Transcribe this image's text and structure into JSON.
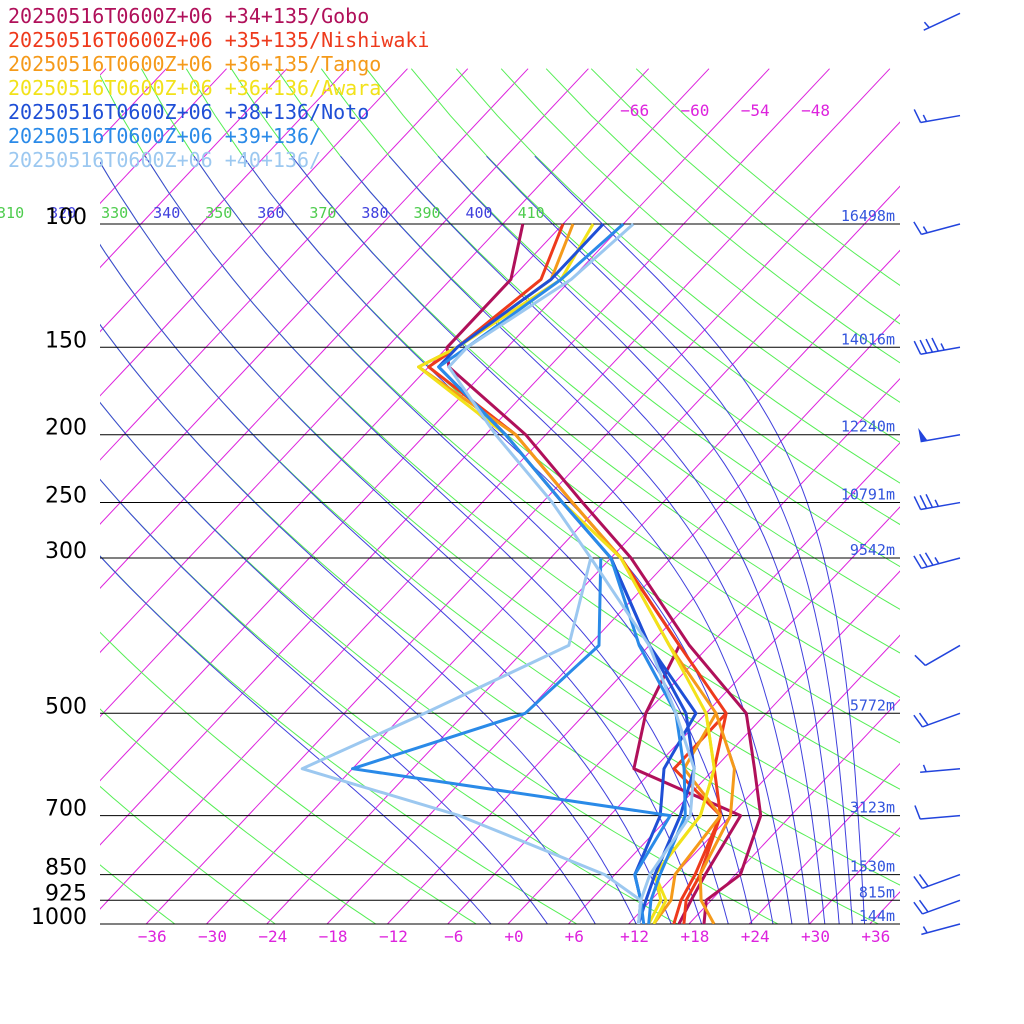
{
  "legend": [
    {
      "label": "20250516T0600Z+06 +34+135/Gobo",
      "color": "#b0105a"
    },
    {
      "label": "20250516T0600Z+06 +35+135/Nishiwaki",
      "color": "#ee3a1c"
    },
    {
      "label": "20250516T0600Z+06 +36+135/Tango",
      "color": "#f59a1a"
    },
    {
      "label": "20250516T0600Z+06 +36+136/Awara",
      "color": "#f2e21a"
    },
    {
      "label": "20250516T0600Z+06 +38+136/Noto",
      "color": "#1f4fd6"
    },
    {
      "label": "20250516T0600Z+06 +39+136/",
      "color": "#2a8ae8"
    },
    {
      "label": "20250516T0600Z+06 +40+136/",
      "color": "#9cc8f0"
    }
  ],
  "colors": {
    "isotherm": "#dd22dd",
    "theta": "#55ee55",
    "theta_e": "#4040dd",
    "height_label": "#3355dd",
    "wind_barb": "#2244dd",
    "isobar": "#000000"
  },
  "chart_data": {
    "type": "skew-t",
    "y_axis": "pressure (hPa), log scale",
    "x_axis": "temperature (°C), skewed",
    "pressure_levels": [
      {
        "p": 100,
        "label": "100",
        "height": "16498m"
      },
      {
        "p": 150,
        "label": "150",
        "height": "14016m"
      },
      {
        "p": 200,
        "label": "200",
        "height": "12240m"
      },
      {
        "p": 250,
        "label": "250",
        "height": "10791m"
      },
      {
        "p": 300,
        "label": "300",
        "height": "9542m"
      },
      {
        "p": 500,
        "label": "500",
        "height": "5772m"
      },
      {
        "p": 700,
        "label": "700",
        "height": "3123m"
      },
      {
        "p": 850,
        "label": "850",
        "height": "1530m"
      },
      {
        "p": 925,
        "label": "925",
        "height": "815m"
      },
      {
        "p": 1000,
        "label": "1000",
        "height": "144m"
      }
    ],
    "temperature_ticks": [
      -36,
      -30,
      -24,
      -18,
      -12,
      -6,
      0,
      6,
      12,
      18,
      24,
      30,
      36
    ],
    "temperature_tick_labels": [
      "−36",
      "−30",
      "−24",
      "−18",
      "−12",
      "−6",
      "+0",
      "+6",
      "+12",
      "+18",
      "+24",
      "+30",
      "+36"
    ],
    "upper_isotherm_labels": [
      "−66",
      "−60",
      "−54",
      "−48"
    ],
    "theta_labels": [
      "310",
      "320",
      "330",
      "340",
      "350",
      "360",
      "370",
      "380",
      "390",
      "400",
      "410"
    ],
    "series": [
      {
        "name": "20250516T0600Z+06 +34+135/Gobo",
        "temp": [
          [
            1000,
            19.5
          ],
          [
            925,
            17.5
          ],
          [
            850,
            18.5
          ],
          [
            700,
            15
          ],
          [
            600,
            10
          ],
          [
            500,
            4
          ],
          [
            400,
            -8
          ],
          [
            300,
            -22
          ],
          [
            250,
            -32
          ],
          [
            200,
            -44
          ],
          [
            160,
            -58
          ],
          [
            150,
            -60
          ],
          [
            120,
            -60
          ],
          [
            100,
            -64
          ]
        ],
        "dew": [
          [
            1000,
            17
          ],
          [
            925,
            16
          ],
          [
            850,
            15
          ],
          [
            700,
            13
          ],
          [
            600,
            -2
          ],
          [
            500,
            -6
          ],
          [
            400,
            -9
          ],
          [
            300,
            -23
          ]
        ]
      },
      {
        "name": "20250516T0600Z+06 +35+135/Nishiwaki",
        "temp": [
          [
            1000,
            17.5
          ],
          [
            925,
            15.5
          ],
          [
            850,
            14.5
          ],
          [
            700,
            11
          ],
          [
            600,
            6
          ],
          [
            500,
            2
          ],
          [
            400,
            -9
          ],
          [
            300,
            -23
          ],
          [
            250,
            -33
          ],
          [
            200,
            -45
          ],
          [
            160,
            -60
          ],
          [
            150,
            -59
          ],
          [
            120,
            -57
          ],
          [
            100,
            -60
          ]
        ],
        "dew": [
          [
            1000,
            16.5
          ],
          [
            925,
            15
          ],
          [
            850,
            14
          ],
          [
            700,
            11
          ],
          [
            600,
            2
          ],
          [
            500,
            2
          ]
        ]
      },
      {
        "name": "20250516T0600Z+06 +36+135/Tango",
        "temp": [
          [
            1000,
            20.5
          ],
          [
            925,
            17
          ],
          [
            850,
            14.5
          ],
          [
            700,
            12
          ],
          [
            600,
            8
          ],
          [
            500,
            1
          ],
          [
            400,
            -10
          ],
          [
            300,
            -23
          ],
          [
            250,
            -33
          ],
          [
            200,
            -45
          ],
          [
            160,
            -61
          ],
          [
            150,
            -59
          ],
          [
            120,
            -56
          ],
          [
            100,
            -59
          ]
        ],
        "dew": [
          [
            1000,
            14.5
          ],
          [
            925,
            14
          ],
          [
            850,
            12
          ],
          [
            700,
            11
          ],
          [
            600,
            3
          ],
          [
            500,
            1
          ]
        ]
      },
      {
        "name": "20250516T0600Z+06 +36+136/Awara",
        "temp": [
          [
            1000,
            14.5
          ],
          [
            925,
            13.5
          ],
          [
            850,
            10
          ],
          [
            700,
            9
          ],
          [
            600,
            6
          ],
          [
            500,
            0
          ],
          [
            400,
            -10
          ],
          [
            300,
            -23
          ],
          [
            250,
            -34
          ],
          [
            200,
            -46
          ],
          [
            160,
            -61
          ],
          [
            150,
            -59
          ],
          [
            120,
            -55
          ],
          [
            100,
            -57
          ]
        ],
        "dew": [
          [
            1000,
            14
          ],
          [
            925,
            13
          ],
          [
            850,
            10
          ],
          [
            700,
            9
          ],
          [
            600,
            6
          ],
          [
            500,
            0
          ]
        ]
      },
      {
        "name": "20250516T0600Z+06 +38+136/Noto",
        "temp": [
          [
            1000,
            13
          ],
          [
            925,
            11.5
          ],
          [
            850,
            10
          ],
          [
            700,
            7
          ],
          [
            600,
            4
          ],
          [
            500,
            -2
          ],
          [
            400,
            -12
          ],
          [
            300,
            -24
          ],
          [
            250,
            -34
          ],
          [
            200,
            -46
          ],
          [
            160,
            -59
          ],
          [
            150,
            -59
          ],
          [
            120,
            -56
          ],
          [
            100,
            -56
          ]
        ],
        "dew": [
          [
            1000,
            13
          ],
          [
            925,
            11
          ],
          [
            850,
            8
          ],
          [
            700,
            5
          ],
          [
            600,
            1
          ],
          [
            500,
            -1
          ],
          [
            400,
            -12
          ],
          [
            300,
            -24
          ]
        ]
      },
      {
        "name": "20250516T0600Z+06 +39+136/",
        "temp": [
          [
            1000,
            14
          ],
          [
            925,
            12
          ],
          [
            850,
            10.5
          ],
          [
            700,
            7.5
          ],
          [
            600,
            3
          ],
          [
            500,
            -3
          ],
          [
            400,
            -13
          ],
          [
            300,
            -24
          ],
          [
            250,
            -34
          ],
          [
            200,
            -46
          ],
          [
            160,
            -59
          ],
          [
            150,
            -58
          ],
          [
            120,
            -55
          ],
          [
            100,
            -54
          ]
        ],
        "dew": [
          [
            1000,
            13.5
          ],
          [
            925,
            11
          ],
          [
            850,
            8
          ],
          [
            700,
            6
          ],
          [
            600,
            -30
          ],
          [
            500,
            -18
          ],
          [
            400,
            -17
          ],
          [
            300,
            -25
          ]
        ]
      },
      {
        "name": "20250516T0600Z+06 +40+136/",
        "temp": [
          [
            1000,
            13
          ],
          [
            925,
            11
          ],
          [
            850,
            9.5
          ],
          [
            700,
            8
          ],
          [
            600,
            4
          ],
          [
            500,
            -3
          ],
          [
            400,
            -12
          ],
          [
            300,
            -26
          ],
          [
            250,
            -35
          ],
          [
            200,
            -47
          ],
          [
            160,
            -58
          ],
          [
            150,
            -58
          ],
          [
            120,
            -54
          ],
          [
            100,
            -53
          ]
        ],
        "dew": [
          [
            1000,
            13
          ],
          [
            925,
            11
          ],
          [
            850,
            5
          ],
          [
            700,
            -15
          ],
          [
            600,
            -35
          ],
          [
            500,
            -28
          ],
          [
            400,
            -20
          ],
          [
            300,
            -26
          ]
        ]
      }
    ],
    "wind_barbs": [
      {
        "p": 1000,
        "dir": 255,
        "kt": 5
      },
      {
        "p": 925,
        "dir": 250,
        "kt": 20
      },
      {
        "p": 850,
        "dir": 250,
        "kt": 20
      },
      {
        "p": 700,
        "dir": 265,
        "kt": 10
      },
      {
        "p": 600,
        "dir": 265,
        "kt": 5
      },
      {
        "p": 500,
        "dir": 250,
        "kt": 20
      },
      {
        "p": 400,
        "dir": 240,
        "kt": 10
      },
      {
        "p": 300,
        "dir": 255,
        "kt": 35
      },
      {
        "p": 250,
        "dir": 260,
        "kt": 35
      },
      {
        "p": 200,
        "dir": 260,
        "kt": 50
      },
      {
        "p": 150,
        "dir": 260,
        "kt": 45
      },
      {
        "p": 100,
        "dir": 255,
        "kt": 15
      },
      {
        "p": 70,
        "dir": 260,
        "kt": 15
      },
      {
        "p": 50,
        "dir": 245,
        "kt": 5
      }
    ]
  }
}
